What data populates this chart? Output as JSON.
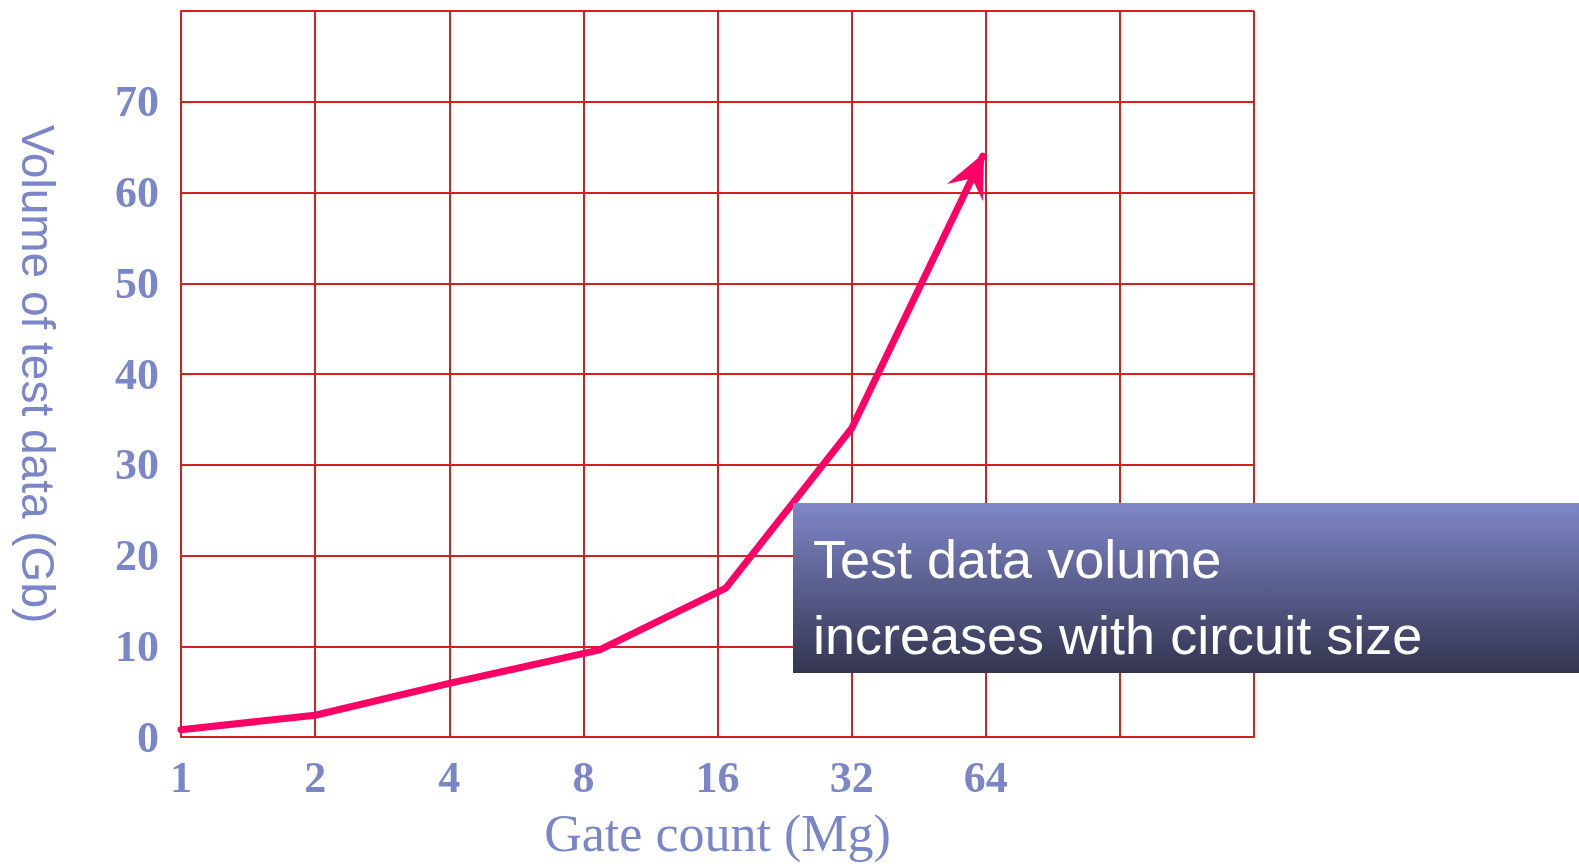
{
  "chart_data": {
    "type": "line",
    "xlabel": "Gate count (Mg)",
    "ylabel": "Volume of test data (Gb)",
    "x": [
      1,
      2,
      4,
      8.7,
      16.7,
      32,
      63
    ],
    "series": [
      {
        "color": "#ff0066",
        "values": [
          0.8,
          2.4,
          5.9,
          9.6,
          16.4,
          34,
          64
        ]
      }
    ],
    "log": "x",
    "xlim": [
      1,
      256
    ],
    "xticks": [
      1,
      2,
      4,
      8,
      16,
      32,
      64,
      {
        "value": 128,
        "label": null
      },
      {
        "value": 256,
        "label": null
      }
    ],
    "ylim": [
      0,
      80
    ],
    "yticks": [
      0,
      10,
      20,
      30,
      40,
      50,
      60,
      70,
      {
        "value": 80,
        "label": null
      }
    ],
    "grid": true,
    "marker": "none",
    "annotations": [
      "Test data volume\nincreases with circuit size"
    ]
  }
}
